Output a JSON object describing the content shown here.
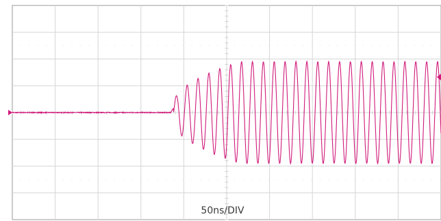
{
  "chart_data": {
    "type": "line",
    "title": "",
    "xlabel": "",
    "ylabel": "",
    "timebase_label": "50ns/DIV",
    "x_divisions": 10,
    "y_divisions": 8,
    "xlim": [
      0,
      500
    ],
    "ylim": [
      -4,
      4
    ],
    "x_units": "ns",
    "y_units": "div",
    "grid": true,
    "trace_color": "#d0197a",
    "grid_color": "#d6d6d6",
    "series": [
      {
        "points": {
          "flat_until_ns": 185,
          "ring_start_ns": 188,
          "ring_start_amp_div": 0.3,
          "growth_end_ns": 265,
          "steady_amp_div": 1.9,
          "period_ns": 12.7,
          "baseline_div": 0.0
        }
      }
    ],
    "channel_marker": "ground-reference-marker",
    "trigger_marker": "trigger-level-marker"
  }
}
